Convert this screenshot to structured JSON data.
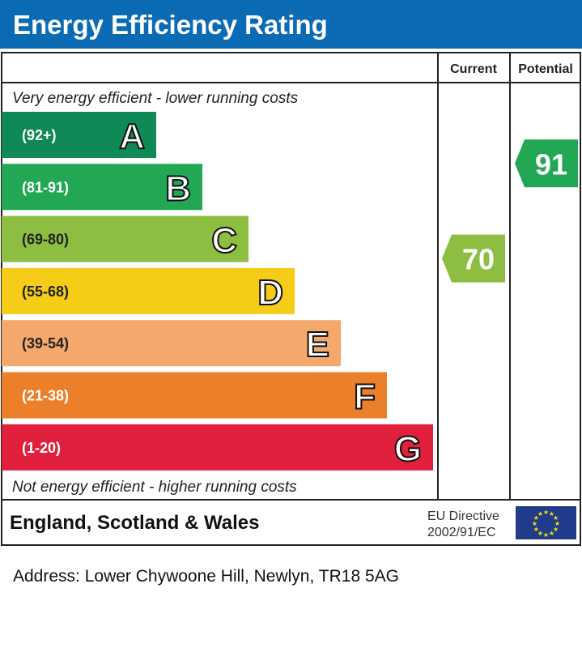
{
  "title": "Energy Efficiency Rating",
  "columns": {
    "current": "Current",
    "potential": "Potential"
  },
  "top_note": "Very energy efficient - lower running costs",
  "bottom_note": "Not energy efficient - higher running costs",
  "footer": {
    "region": "England, Scotland & Wales",
    "directive_line1": "EU Directive",
    "directive_line2": "2002/91/EC"
  },
  "address": "Address: Lower Chywoone Hill, Newlyn, TR18 5AG",
  "colors": {
    "header": "#0a6ab4",
    "eu_flag": "#1f3b8a",
    "eu_star": "#ffdd00"
  },
  "chart_data": {
    "type": "bar",
    "title": "Energy Efficiency Rating",
    "bands": [
      {
        "letter": "A",
        "range": "(92+)",
        "color": "#0f8a57"
      },
      {
        "letter": "B",
        "range": "(81-91)",
        "color": "#22a754"
      },
      {
        "letter": "C",
        "range": "(69-80)",
        "color": "#8dbd41"
      },
      {
        "letter": "D",
        "range": "(55-68)",
        "color": "#f5cc18"
      },
      {
        "letter": "E",
        "range": "(39-54)",
        "color": "#f2a96b"
      },
      {
        "letter": "F",
        "range": "(21-38)",
        "color": "#ec7f2a"
      },
      {
        "letter": "G",
        "range": "(1-20)",
        "color": "#e0203c"
      }
    ],
    "current": {
      "value": 70,
      "band": "C",
      "color": "#8dbd41"
    },
    "potential": {
      "value": 91,
      "band": "B",
      "color": "#22a754"
    }
  }
}
